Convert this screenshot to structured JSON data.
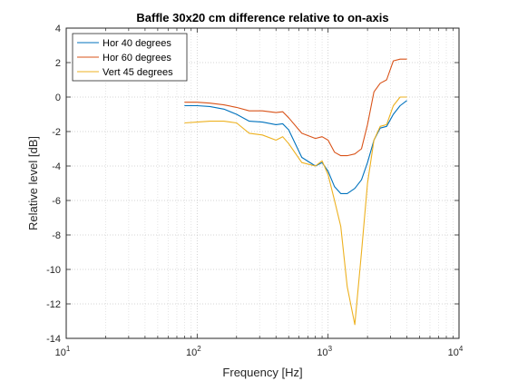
{
  "chart_data": {
    "type": "line",
    "title": "Baffle 30x20 cm difference relative to on-axis",
    "xlabel": "Frequency [Hz]",
    "ylabel": "Relative level [dB]",
    "xscale": "log",
    "xlim": [
      10,
      10000
    ],
    "ylim": [
      -14,
      4
    ],
    "xticks": [
      {
        "value": 10,
        "base": "10",
        "exp": "1"
      },
      {
        "value": 100,
        "base": "10",
        "exp": "2"
      },
      {
        "value": 1000,
        "base": "10",
        "exp": "3"
      },
      {
        "value": 10000,
        "base": "10",
        "exp": "4"
      }
    ],
    "yticks": [
      4,
      2,
      0,
      -2,
      -4,
      -6,
      -8,
      -10,
      -12,
      -14
    ],
    "grid": true,
    "minor_grid": true,
    "legend_position": "top-left",
    "series": [
      {
        "name": "Hor 40 degrees",
        "color": "#0072BD",
        "x": [
          80,
          100,
          125,
          160,
          200,
          250,
          315,
          400,
          450,
          500,
          630,
          800,
          900,
          1000,
          1120,
          1250,
          1400,
          1600,
          1800,
          2000,
          2240,
          2500,
          2800,
          3150,
          3550,
          4000
        ],
        "y": [
          -0.5,
          -0.5,
          -0.55,
          -0.7,
          -1.0,
          -1.4,
          -1.45,
          -1.6,
          -1.55,
          -1.9,
          -3.5,
          -4.0,
          -3.8,
          -4.3,
          -5.2,
          -5.6,
          -5.6,
          -5.3,
          -4.8,
          -3.8,
          -2.5,
          -1.8,
          -1.7,
          -1.0,
          -0.5,
          -0.2
        ]
      },
      {
        "name": "Hor 60 degrees",
        "color": "#D95319",
        "x": [
          80,
          100,
          125,
          160,
          200,
          250,
          315,
          400,
          450,
          500,
          630,
          800,
          900,
          1000,
          1120,
          1250,
          1400,
          1600,
          1800,
          2000,
          2240,
          2500,
          2800,
          3150,
          3550,
          4000
        ],
        "y": [
          -0.3,
          -0.3,
          -0.35,
          -0.45,
          -0.6,
          -0.8,
          -0.8,
          -0.9,
          -0.85,
          -1.2,
          -2.1,
          -2.4,
          -2.3,
          -2.5,
          -3.2,
          -3.4,
          -3.4,
          -3.3,
          -3.0,
          -1.6,
          0.3,
          0.8,
          1.0,
          2.1,
          2.2,
          2.2
        ]
      },
      {
        "name": "Vert 45 degrees",
        "color": "#EDB120",
        "x": [
          80,
          100,
          125,
          160,
          200,
          250,
          315,
          400,
          450,
          500,
          630,
          800,
          900,
          1000,
          1120,
          1250,
          1400,
          1600,
          1800,
          2000,
          2240,
          2500,
          2800,
          3150,
          3550,
          4000
        ],
        "y": [
          -1.5,
          -1.45,
          -1.4,
          -1.4,
          -1.5,
          -2.1,
          -2.2,
          -2.5,
          -2.3,
          -2.7,
          -3.8,
          -4.0,
          -3.7,
          -4.5,
          -6.0,
          -7.5,
          -11.0,
          -13.2,
          -9.0,
          -5.0,
          -2.5,
          -1.7,
          -1.6,
          -0.5,
          0.0,
          0.0
        ]
      }
    ]
  }
}
